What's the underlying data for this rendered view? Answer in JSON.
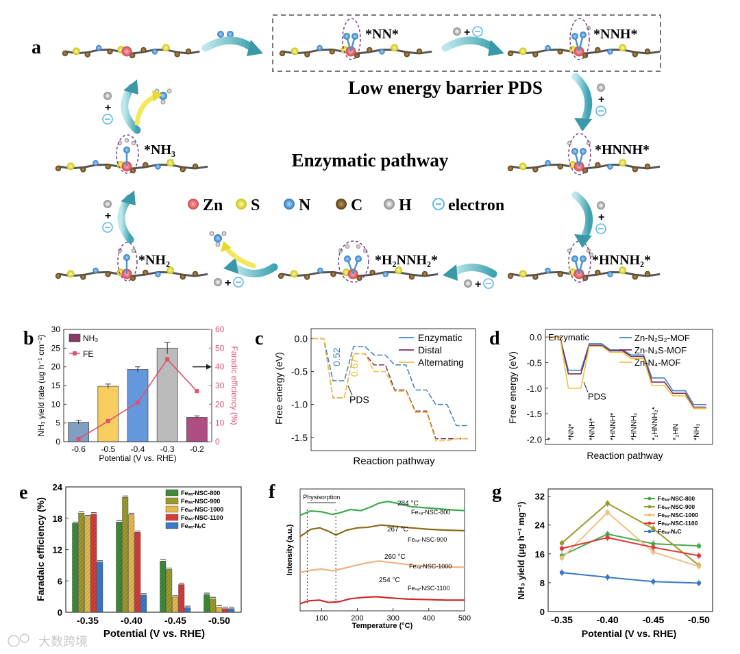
{
  "panel_a": {
    "letter": "a",
    "box_title": "Low energy barrier PDS",
    "center_title": "Enzymatic pathway",
    "species": [
      "*NN*",
      "*NNH*",
      "*HNNH*",
      "*HNNH₂*",
      "*H₂NNH₂*",
      "*NH₂",
      "*NH₃"
    ],
    "step_plus": "+",
    "legend": [
      {
        "label": "Zn",
        "color": "#e0676b"
      },
      {
        "label": "S",
        "color": "#e3e02a"
      },
      {
        "label": "N",
        "color": "#3a8fd6"
      },
      {
        "label": "C",
        "color": "#7a5a2a"
      },
      {
        "label": "H",
        "color": "#b8b8b8"
      },
      {
        "label": "electron",
        "color": "#5cb8e6"
      }
    ]
  },
  "chart_data": [
    {
      "panel": "b",
      "type": "bar",
      "categories": [
        "-0.6",
        "-0.5",
        "-0.4",
        "-0.3",
        "-0.2"
      ],
      "series": [
        {
          "name": "NH₃",
          "values": [
            5.2,
            14.8,
            19.3,
            25.0,
            6.5
          ],
          "errors": [
            0.5,
            0.6,
            0.7,
            1.5,
            0.4
          ],
          "colors": [
            "#6a8fb8",
            "#f5c542",
            "#4a86d6",
            "#b0b0b0",
            "#a0306a"
          ]
        },
        {
          "name": "FE",
          "type": "line",
          "axis": "right",
          "values": [
            1.5,
            11,
            21,
            44,
            27
          ],
          "color": "#e05070"
        }
      ],
      "xlabel": "Potential (V vs. RHE)",
      "ylabel": "NH₃ yield rate (ug h⁻¹ cm⁻²)",
      "ylabel2": "Faradic efficiency (%)",
      "ylim": [
        0,
        30
      ],
      "ylim2": [
        0,
        60
      ],
      "yticks": [
        "0",
        "5",
        "10",
        "15",
        "20",
        "25",
        "30"
      ],
      "yticks2": [
        "0",
        "10",
        "20",
        "30",
        "40",
        "50",
        "60"
      ]
    },
    {
      "panel": "c",
      "type": "line",
      "ylabel": "Free energy (eV)",
      "xlabel": "Reaction pathway",
      "ylim": [
        -1.7,
        0.15
      ],
      "yticks": [
        "0.0",
        "-0.5",
        "-1.0",
        "-1.5"
      ],
      "series": [
        {
          "name": "Enzymatic",
          "color": "#3f7fbf",
          "values": [
            0,
            -0.64,
            -0.12,
            -0.25,
            -0.4,
            -0.78,
            -1.0,
            -1.32
          ]
        },
        {
          "name": "Distal",
          "color": "#7a2f55",
          "values": [
            0,
            -0.9,
            -0.23,
            -0.4,
            -0.78,
            -1.1,
            -1.52,
            -1.52
          ]
        },
        {
          "name": "Alternating",
          "color": "#f0c040",
          "values": [
            0,
            -0.9,
            -0.23,
            -0.5,
            -0.8,
            -1.12,
            -1.55,
            -1.52
          ]
        }
      ],
      "annotations": {
        "enzymatic_barrier": "0.52",
        "alternating_barrier": "0.67",
        "pds": "PDS"
      }
    },
    {
      "panel": "d",
      "type": "line",
      "ylabel": "Free energy (eV)",
      "xlabel": "Reaction pathway",
      "ylim": [
        -2.1,
        0.15
      ],
      "yticks": [
        "0.0",
        "-0.5",
        "-1.0",
        "-1.5",
        "-2.0"
      ],
      "categories": [
        "*",
        "*NN*",
        "*NNH*",
        "*HNNH*",
        "*HNNH₂",
        "*₂HNNH₂*",
        "*₂HN",
        "*NH₃"
      ],
      "title": "Enzymatic",
      "series": [
        {
          "name": "Zn-N₂S₂-MOF",
          "color": "#3f7fbf",
          "values": [
            0,
            -0.65,
            -0.13,
            -0.25,
            -0.35,
            -0.8,
            -1.05,
            -1.32
          ]
        },
        {
          "name": "Zn-N₃S-MOF",
          "color": "#7a2f55",
          "values": [
            0,
            -0.72,
            -0.16,
            -0.27,
            -0.38,
            -0.88,
            -1.1,
            -1.37
          ]
        },
        {
          "name": "Zn-N₄-MOF",
          "color": "#f0c040",
          "values": [
            0,
            -1.0,
            -0.18,
            -0.3,
            -0.42,
            -0.95,
            -1.15,
            -1.4
          ]
        }
      ],
      "annotations": {
        "pds": "PDS"
      }
    },
    {
      "panel": "e",
      "type": "bar",
      "categories": [
        "-0.35",
        "-0.40",
        "-0.45",
        "-0.50"
      ],
      "ylabel": "Faradaic efficiency (%)",
      "xlabel": "Potential (V vs. RHE)",
      "ylim": [
        0,
        24
      ],
      "yticks": [
        "0",
        "6",
        "12",
        "18",
        "24"
      ],
      "series": [
        {
          "name": "Feₛₐ-NSC-800",
          "color": "#3e8a3a",
          "values": [
            17.0,
            17.3,
            9.8,
            3.4
          ]
        },
        {
          "name": "Feₛₐ-NSC-900",
          "color": "#9a9a2a",
          "values": [
            19.0,
            22.0,
            8.2,
            2.6
          ]
        },
        {
          "name": "Feₛₐ-NSC-1000",
          "color": "#e6b84a",
          "values": [
            18.3,
            18.7,
            2.9,
            1.0
          ]
        },
        {
          "name": "Feₛₐ-NSC-1100",
          "color": "#d63a3a",
          "values": [
            18.8,
            15.3,
            5.3,
            0.7
          ]
        },
        {
          "name": "Feₛₐ-NₓC",
          "color": "#3a78c8",
          "values": [
            9.6,
            3.3,
            0.9,
            0.7
          ]
        }
      ]
    },
    {
      "panel": "f",
      "type": "line",
      "xlabel": "Temperature (°C)",
      "ylabel": "Intensity (a.u.)",
      "xlim": [
        40,
        500
      ],
      "xticks": [
        "100",
        "200",
        "300",
        "400",
        "500"
      ],
      "annotation": "Physisorption",
      "series": [
        {
          "name": "Feₛₐ-NSC-800",
          "color": "#3aa84a",
          "peak": "284 °C",
          "x": [
            40,
            70,
            100,
            130,
            150,
            180,
            210,
            240,
            260,
            284,
            310,
            350,
            400,
            450,
            500
          ],
          "y": [
            0.8,
            0.95,
            0.92,
            0.83,
            0.88,
            1.0,
            0.96,
            1.1,
            1.22,
            1.28,
            1.22,
            1.1,
            1.05,
            1.0,
            0.96
          ]
        },
        {
          "name": "Feₛₐ-NSC-900",
          "color": "#8a6a1a",
          "peak": "267 °C",
          "x": [
            40,
            70,
            95,
            120,
            140,
            170,
            200,
            230,
            267,
            300,
            350,
            400,
            450,
            500
          ],
          "y": [
            0.3,
            0.55,
            0.6,
            0.48,
            0.35,
            0.52,
            0.6,
            0.62,
            0.7,
            0.66,
            0.6,
            0.55,
            0.52,
            0.5
          ]
        },
        {
          "name": "Feₛₐ-NSC-1000",
          "color": "#f0b080",
          "peak": "260 °C",
          "x": [
            40,
            70,
            100,
            130,
            160,
            200,
            230,
            260,
            300,
            350,
            400,
            450,
            500
          ],
          "y": [
            0.0,
            0.08,
            0.12,
            0.06,
            0.14,
            0.26,
            0.34,
            0.4,
            0.34,
            0.26,
            0.22,
            0.2,
            0.18
          ]
        },
        {
          "name": "Feₛₐ-NSC-1100",
          "color": "#cc2a2a",
          "peak": "254 °C",
          "x": [
            40,
            65,
            95,
            120,
            150,
            180,
            220,
            254,
            290,
            340,
            400,
            450,
            500
          ],
          "y": [
            -0.32,
            -0.22,
            -0.2,
            -0.28,
            -0.25,
            -0.15,
            -0.1,
            -0.08,
            -0.12,
            -0.16,
            -0.18,
            -0.2,
            -0.2
          ]
        }
      ]
    },
    {
      "panel": "g",
      "type": "line",
      "categories": [
        "-0.35",
        "-0.40",
        "-0.45",
        "-0.50"
      ],
      "xlabel": "Potential (V vs. RHE)",
      "ylabel": "NH₃ yield (μg h⁻¹ mg⁻¹)",
      "ylim": [
        0,
        34
      ],
      "yticks": [
        "0",
        "8",
        "16",
        "24",
        "32"
      ],
      "series": [
        {
          "name": "Feₛₐ-NSC-800",
          "color": "#4aa84a",
          "values": [
            15.5,
            21.5,
            18.8,
            18.2
          ]
        },
        {
          "name": "Feₛₐ-NSC-900",
          "color": "#9a9a2a",
          "values": [
            19.0,
            30.0,
            23.0,
            12.8
          ]
        },
        {
          "name": "Feₛₐ-NSC-1000",
          "color": "#f0c080",
          "values": [
            14.8,
            27.5,
            16.5,
            12.5
          ]
        },
        {
          "name": "Feₛₐ-NSC-1100",
          "color": "#e03a3a",
          "values": [
            17.5,
            20.5,
            17.8,
            15.5
          ]
        },
        {
          "name": "Feₛₐ-NₓC",
          "color": "#3a78c8",
          "values": [
            10.8,
            9.5,
            8.3,
            7.9
          ]
        }
      ]
    }
  ],
  "panel_letters": {
    "b": "b",
    "c": "c",
    "d": "d",
    "e": "e",
    "f": "f",
    "g": "g"
  },
  "watermark": "大数跨境"
}
